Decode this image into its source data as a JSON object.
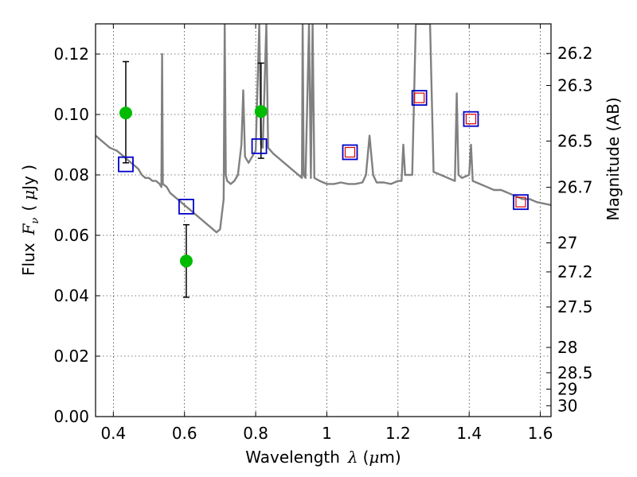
{
  "chart_data": {
    "type": "scatter",
    "title": "",
    "xlabel": "Wavelength",
    "xlabel_symbol": "λ",
    "xlabel_unit_open": "(",
    "xlabel_unit_mu": "μ",
    "xlabel_unit_rest": "m)",
    "ylabel": "Flux",
    "ylabel_symbol": "F",
    "ylabel_subscript": "ν",
    "ylabel_unit_open": "(",
    "ylabel_unit_mu": "μ",
    "ylabel_unit_rest": "Jy )",
    "y2label": "Magnitude (AB)",
    "xlim": [
      0.35,
      1.63
    ],
    "ylim": [
      0.0,
      0.13
    ],
    "x_ticks": [
      0.4,
      0.6,
      0.8,
      1.0,
      1.2,
      1.4,
      1.6
    ],
    "x_tick_labels": [
      "0.4",
      "0.6",
      "0.8",
      "1",
      "1.2",
      "1.4",
      "1.6"
    ],
    "y_ticks": [
      0.0,
      0.02,
      0.04,
      0.06,
      0.08,
      0.1,
      0.12
    ],
    "y_tick_labels": [
      "0.00",
      "0.02",
      "0.04",
      "0.06",
      "0.08",
      "0.10",
      "0.12"
    ],
    "mag_ticks": [
      {
        "label": "26.2",
        "flux": 0.1202
      },
      {
        "label": "26.3",
        "flux": 0.1096
      },
      {
        "label": "26.5",
        "flux": 0.0912
      },
      {
        "label": "26.7",
        "flux": 0.0759
      },
      {
        "label": "27",
        "flux": 0.0575
      },
      {
        "label": "27.2",
        "flux": 0.0479
      },
      {
        "label": "27.5",
        "flux": 0.0363
      },
      {
        "label": "28",
        "flux": 0.0229
      },
      {
        "label": "28.5",
        "flux": 0.0145
      },
      {
        "label": "29",
        "flux": 0.0091
      },
      {
        "label": "30",
        "flux": 0.0036
      }
    ],
    "grid": true,
    "colors": {
      "spectrum": "#808080",
      "observed": "#00bb00",
      "model_square": "#0000cc",
      "model_inner_square": "#dd0000",
      "errorbar": "#000000"
    },
    "observed_points": [
      {
        "x": 0.435,
        "y": 0.1005,
        "ylow": 0.084,
        "yhigh": 0.1175
      },
      {
        "x": 0.605,
        "y": 0.0515,
        "ylow": 0.0395,
        "yhigh": 0.0635
      },
      {
        "x": 0.815,
        "y": 0.101,
        "ylow": 0.0855,
        "yhigh": 0.117
      }
    ],
    "model_points": [
      {
        "x": 0.435,
        "y": 0.0835,
        "inner": false
      },
      {
        "x": 0.605,
        "y": 0.0695,
        "inner": false
      },
      {
        "x": 0.81,
        "y": 0.0895,
        "inner": false
      },
      {
        "x": 1.065,
        "y": 0.0875,
        "inner": true
      },
      {
        "x": 1.26,
        "y": 0.1055,
        "inner": true
      },
      {
        "x": 1.405,
        "y": 0.0985,
        "inner": true
      },
      {
        "x": 1.545,
        "y": 0.071,
        "inner": true
      }
    ],
    "spectrum": [
      [
        0.35,
        0.093
      ],
      [
        0.36,
        0.092
      ],
      [
        0.37,
        0.091
      ],
      [
        0.38,
        0.09
      ],
      [
        0.39,
        0.089
      ],
      [
        0.4,
        0.0885
      ],
      [
        0.41,
        0.088
      ],
      [
        0.42,
        0.087
      ],
      [
        0.43,
        0.086
      ],
      [
        0.44,
        0.085
      ],
      [
        0.45,
        0.084
      ],
      [
        0.46,
        0.083
      ],
      [
        0.47,
        0.082
      ],
      [
        0.48,
        0.08
      ],
      [
        0.49,
        0.079
      ],
      [
        0.5,
        0.079
      ],
      [
        0.51,
        0.078
      ],
      [
        0.52,
        0.078
      ],
      [
        0.53,
        0.077
      ],
      [
        0.535,
        0.076
      ],
      [
        0.537,
        0.12
      ],
      [
        0.539,
        0.077
      ],
      [
        0.55,
        0.076
      ],
      [
        0.56,
        0.074
      ],
      [
        0.57,
        0.073
      ],
      [
        0.58,
        0.072
      ],
      [
        0.59,
        0.071
      ],
      [
        0.6,
        0.07
      ],
      [
        0.61,
        0.069
      ],
      [
        0.62,
        0.068
      ],
      [
        0.63,
        0.067
      ],
      [
        0.64,
        0.066
      ],
      [
        0.65,
        0.065
      ],
      [
        0.66,
        0.064
      ],
      [
        0.67,
        0.063
      ],
      [
        0.68,
        0.062
      ],
      [
        0.69,
        0.061
      ],
      [
        0.7,
        0.062
      ],
      [
        0.71,
        0.072
      ],
      [
        0.713,
        0.13
      ],
      [
        0.716,
        0.08
      ],
      [
        0.72,
        0.078
      ],
      [
        0.73,
        0.077
      ],
      [
        0.74,
        0.078
      ],
      [
        0.75,
        0.08
      ],
      [
        0.76,
        0.09
      ],
      [
        0.765,
        0.108
      ],
      [
        0.77,
        0.086
      ],
      [
        0.78,
        0.084
      ],
      [
        0.79,
        0.086
      ],
      [
        0.8,
        0.088
      ],
      [
        0.81,
        0.13
      ],
      [
        0.815,
        0.09
      ],
      [
        0.82,
        0.089
      ],
      [
        0.825,
        0.11
      ],
      [
        0.83,
        0.13
      ],
      [
        0.835,
        0.089
      ],
      [
        0.85,
        0.087
      ],
      [
        0.86,
        0.086
      ],
      [
        0.87,
        0.085
      ],
      [
        0.88,
        0.084
      ],
      [
        0.89,
        0.083
      ],
      [
        0.9,
        0.082
      ],
      [
        0.91,
        0.081
      ],
      [
        0.92,
        0.08
      ],
      [
        0.93,
        0.079
      ],
      [
        0.932,
        0.13
      ],
      [
        0.935,
        0.08
      ],
      [
        0.94,
        0.079
      ],
      [
        0.95,
        0.13
      ],
      [
        0.955,
        0.079
      ],
      [
        0.96,
        0.13
      ],
      [
        0.965,
        0.079
      ],
      [
        0.98,
        0.078
      ],
      [
        1.0,
        0.077
      ],
      [
        1.02,
        0.077
      ],
      [
        1.04,
        0.0775
      ],
      [
        1.06,
        0.077
      ],
      [
        1.08,
        0.077
      ],
      [
        1.1,
        0.0775
      ],
      [
        1.11,
        0.08
      ],
      [
        1.12,
        0.093
      ],
      [
        1.13,
        0.08
      ],
      [
        1.14,
        0.0775
      ],
      [
        1.16,
        0.0775
      ],
      [
        1.18,
        0.077
      ],
      [
        1.2,
        0.078
      ],
      [
        1.21,
        0.078
      ],
      [
        1.215,
        0.09
      ],
      [
        1.22,
        0.08
      ],
      [
        1.24,
        0.08
      ],
      [
        1.25,
        0.13
      ],
      [
        1.27,
        0.13
      ],
      [
        1.28,
        0.13
      ],
      [
        1.29,
        0.13
      ],
      [
        1.3,
        0.081
      ],
      [
        1.32,
        0.08
      ],
      [
        1.34,
        0.079
      ],
      [
        1.36,
        0.078
      ],
      [
        1.365,
        0.107
      ],
      [
        1.37,
        0.08
      ],
      [
        1.38,
        0.079
      ],
      [
        1.4,
        0.08
      ],
      [
        1.405,
        0.09
      ],
      [
        1.41,
        0.078
      ],
      [
        1.43,
        0.077
      ],
      [
        1.45,
        0.076
      ],
      [
        1.47,
        0.075
      ],
      [
        1.49,
        0.075
      ],
      [
        1.51,
        0.074
      ],
      [
        1.53,
        0.073
      ],
      [
        1.55,
        0.072
      ],
      [
        1.57,
        0.072
      ],
      [
        1.59,
        0.071
      ],
      [
        1.61,
        0.0705
      ],
      [
        1.63,
        0.07
      ]
    ]
  }
}
